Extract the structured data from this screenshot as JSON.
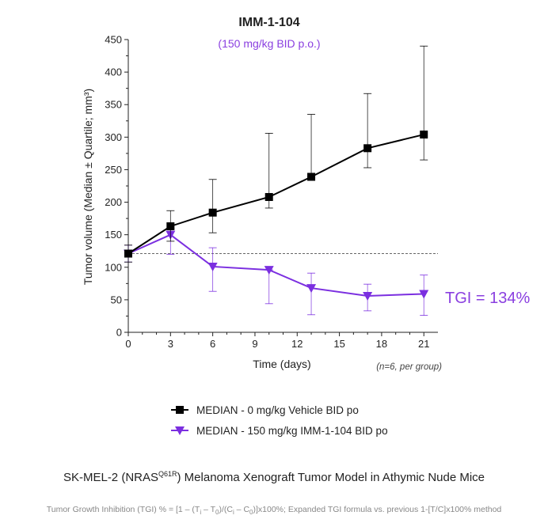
{
  "chart_data": {
    "type": "line",
    "title": "IMM-1-104",
    "subtitle": "(150 mg/kg BID p.o.)",
    "xlabel": "Time (days)",
    "ylabel": "Tumor volume (Median ± Quartile; mm³)",
    "xlim": [
      0,
      22
    ],
    "ylim": [
      0,
      450
    ],
    "xticks": [
      0,
      3,
      6,
      9,
      12,
      15,
      18,
      21
    ],
    "yticks": [
      0,
      50,
      100,
      150,
      200,
      250,
      300,
      350,
      400,
      450
    ],
    "reference_line_y": 121,
    "grid": false,
    "legend_position": "bottom",
    "annotation_n": "(n=6, per group)",
    "annotation_tgi": "TGI = 134%",
    "series": [
      {
        "name": "MEDIAN - 0 mg/kg Vehicle BID po",
        "color": "#000000",
        "marker": "square",
        "x": [
          0,
          3,
          6,
          10,
          13,
          17,
          21
        ],
        "y": [
          121,
          163,
          184,
          208,
          239,
          283,
          304
        ],
        "err_low": [
          108,
          140,
          153,
          191,
          239,
          253,
          265
        ],
        "err_high": [
          134,
          187,
          235,
          306,
          335,
          367,
          440
        ]
      },
      {
        "name": "MEDIAN - 150 mg/kg IMM-1-104 BID po",
        "color": "#7b2fe0",
        "marker": "triangle-down",
        "x": [
          0,
          3,
          6,
          10,
          13,
          17,
          21
        ],
        "y": [
          121,
          150,
          101,
          96,
          68,
          56,
          59
        ],
        "err_low": [
          108,
          120,
          63,
          44,
          27,
          33,
          26
        ],
        "err_high": [
          134,
          160,
          130,
          96,
          91,
          74,
          88
        ]
      }
    ]
  },
  "captions": {
    "model_prefix": "SK-MEL-2 (NRAS",
    "model_sup": "Q61R",
    "model_suffix": ") Melanoma Xenograft Tumor Model in Athymic Nude Mice",
    "formula_a": "Tumor Growth Inhibition (TGI) % = [1 – (T",
    "formula_sub1": "i",
    "formula_b": " – T",
    "formula_sub2": "0",
    "formula_c": ")/(C",
    "formula_sub3": "i",
    "formula_d": " – C",
    "formula_sub4": "0",
    "formula_e": ")]x100%; Expanded TGI formula vs. previous 1-[T/C]x100% method"
  }
}
